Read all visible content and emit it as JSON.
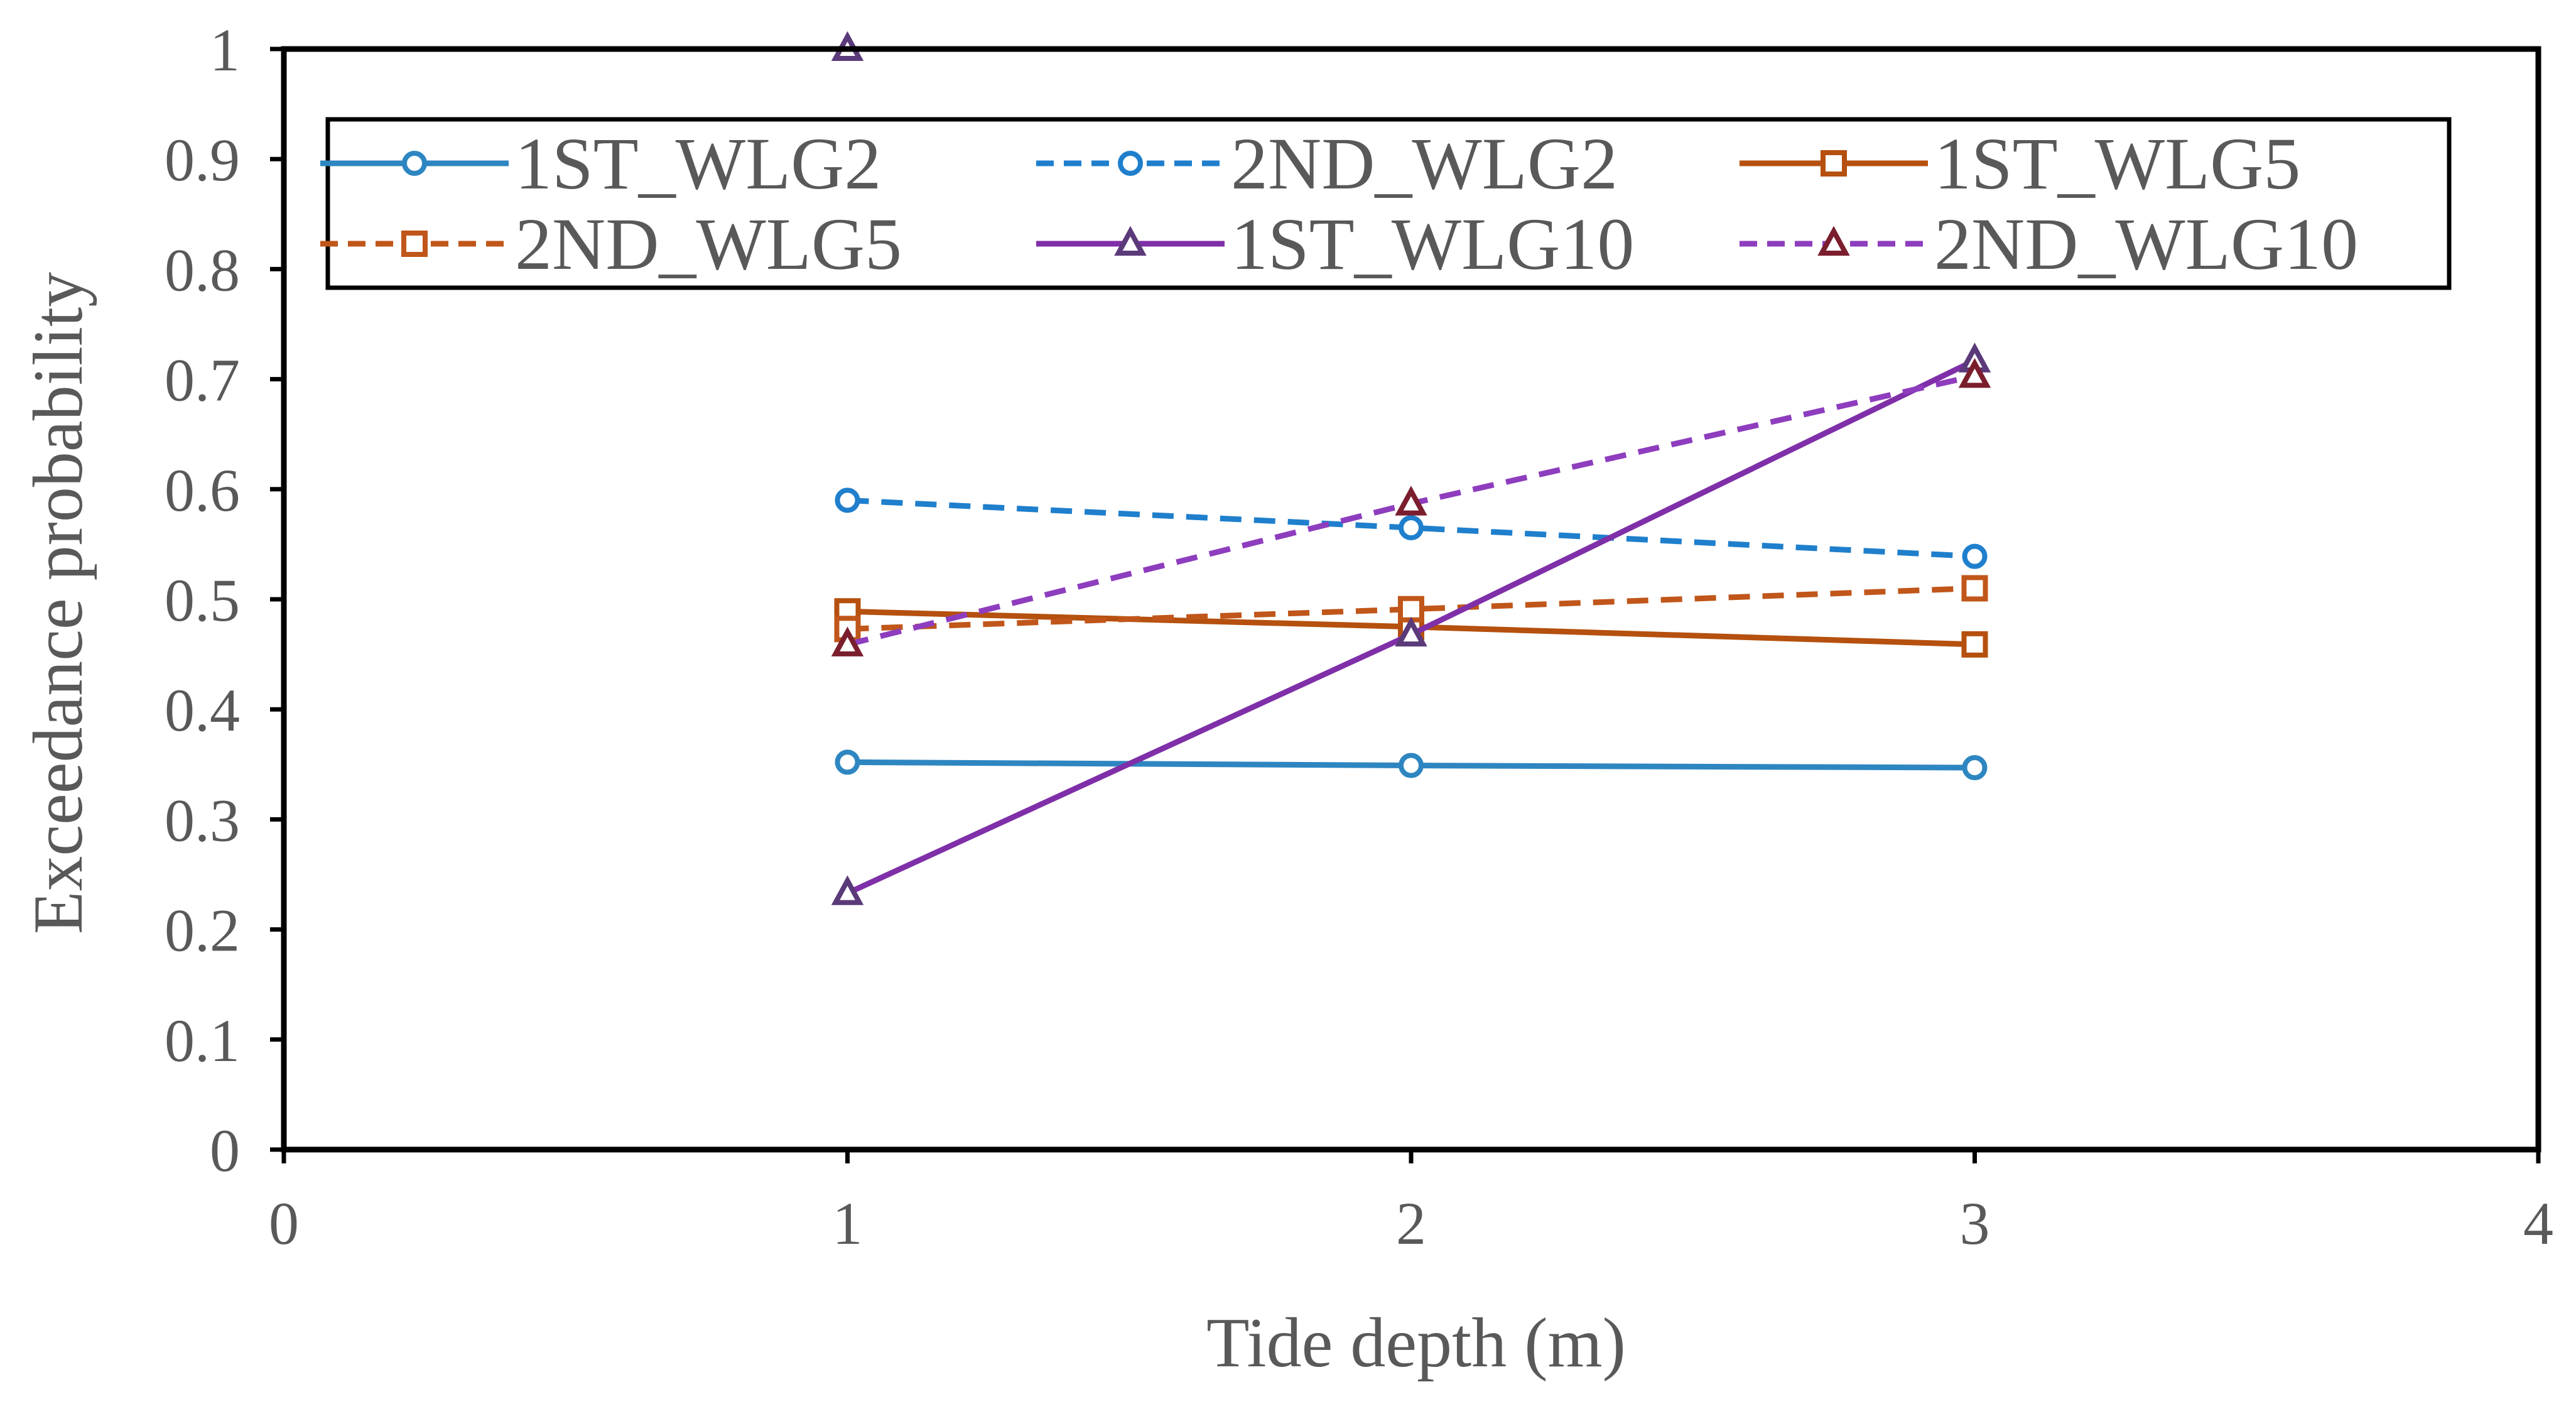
{
  "chart_data": {
    "type": "line",
    "title": "",
    "xlabel": "Tide depth (m)",
    "ylabel": "Exceedance probability",
    "xlim": [
      0,
      4
    ],
    "ylim": [
      0,
      1
    ],
    "x_ticks": [
      "0",
      "1",
      "2",
      "3",
      "4"
    ],
    "y_ticks": [
      "0",
      "0.1",
      "0.2",
      "0.3",
      "0.4",
      "0.5",
      "0.6",
      "0.7",
      "0.8",
      "0.9",
      "1"
    ],
    "grid": false,
    "legend_position": "top",
    "x": [
      1,
      2,
      3
    ],
    "series": [
      {
        "name": "1ST_WLG2",
        "values": [
          0.352,
          0.349,
          0.347
        ],
        "color": "#2E86C1",
        "dash": "solid",
        "marker": "circle",
        "marker_color": "#2E86C1"
      },
      {
        "name": "2ND_WLG2",
        "values": [
          0.59,
          0.565,
          0.539
        ],
        "color": "#1F7FCC",
        "dash": "dashed",
        "marker": "circle",
        "marker_color": "#1F7FCC"
      },
      {
        "name": "1ST_WLG5",
        "values": [
          0.489,
          0.475,
          0.459
        ],
        "color": "#B5500E",
        "dash": "solid",
        "marker": "square",
        "marker_color": "#B5500E"
      },
      {
        "name": "2ND_WLG5",
        "values": [
          0.473,
          0.491,
          0.51
        ],
        "color": "#C0561A",
        "dash": "dashed",
        "marker": "square",
        "marker_color": "#C0561A"
      },
      {
        "name": "1ST_WLG10",
        "values": [
          0.233,
          0.468,
          0.717
        ],
        "color": "#7F2FA8",
        "dash": "solid",
        "marker": "triangle",
        "marker_color": "#5B3A7A"
      },
      {
        "name": "2ND_WLG10",
        "values": [
          0.459,
          0.587,
          0.703
        ],
        "color": "#8E3DBE",
        "dash": "dashed",
        "marker": "triangle",
        "marker_color": "#7A1E2E"
      },
      {
        "name": "2ND_WLG10",
        "values": [
          1.0
        ],
        "x": [
          1
        ],
        "color": "#5B3A7A",
        "dash": "none",
        "marker": "triangle",
        "marker_color": "#5B3A7A",
        "legend": false
      }
    ]
  }
}
